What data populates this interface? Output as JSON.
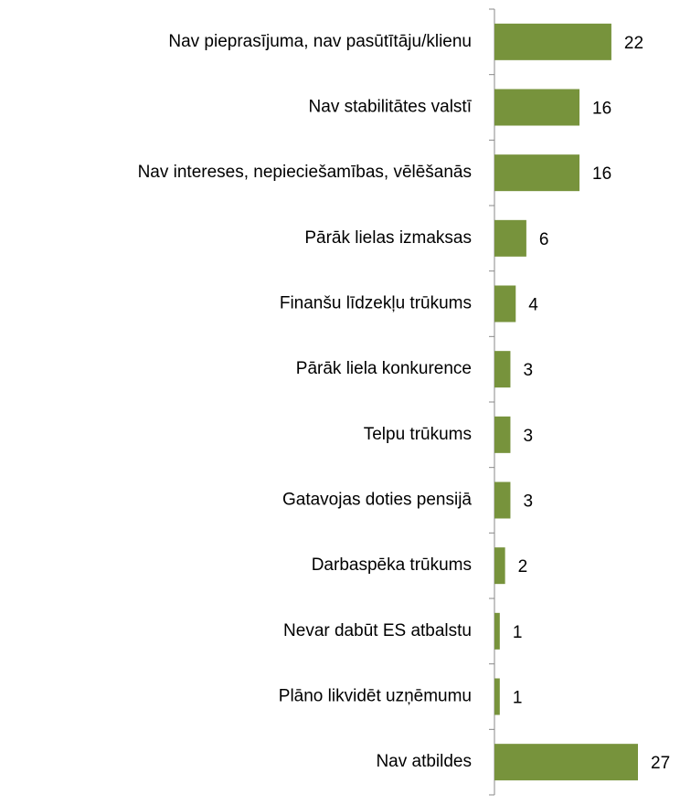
{
  "chart_data": {
    "type": "bar",
    "orientation": "horizontal",
    "categories": [
      "Nav pieprasījuma, nav pasūtītāju/klienu",
      "Nav stabilitātes valstī",
      "Nav intereses, nepieciešamības, vēlēšanās",
      "Pārāk lielas izmaksas",
      "Finanšu līdzekļu trūkums",
      "Pārāk liela konkurence",
      "Telpu trūkums",
      "Gatavojas doties pensijā",
      "Darbaspēka trūkums",
      "Nevar dabūt ES atbalstu",
      "Plāno likvidēt uzņēmumu",
      "Nav atbildes"
    ],
    "values": [
      22,
      16,
      16,
      6,
      4,
      3,
      3,
      3,
      2,
      1,
      1,
      27
    ],
    "color": "#77933c"
  }
}
